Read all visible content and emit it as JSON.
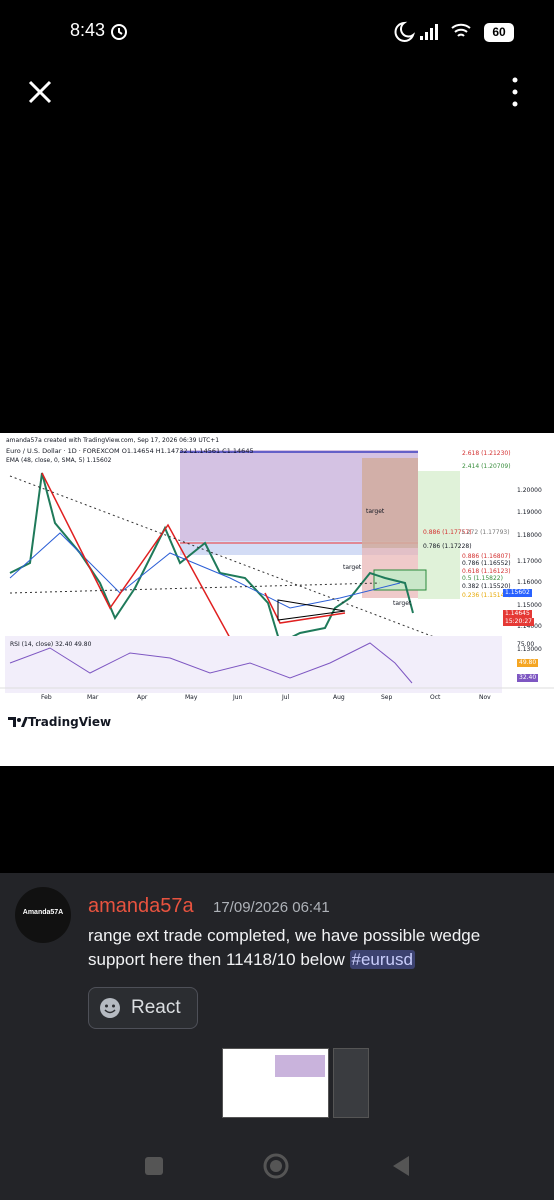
{
  "status_bar": {
    "time": "8:43",
    "battery": "60"
  },
  "chart_image": {
    "header_lines": [
      "amanda57a created with TradingView.com, Sep 17, 2026 06:39 UTC+1",
      "Euro / U.S. Dollar · 1D · FOREXCOM  O1.14654 H1.14732 L1.14561 C1.14645",
      "EMA (48, close, 0, SMA, 5) 1.15602"
    ],
    "price_labels": [
      "1.20000",
      "1.19000",
      "1.18000",
      "1.17000",
      "1.16000",
      "1.15000",
      "1.14000",
      "1.13000"
    ],
    "month_labels": [
      "Feb",
      "Mar",
      "Apr",
      "May",
      "Jun",
      "Jul",
      "Aug",
      "Sep",
      "Oct",
      "Nov"
    ],
    "fib_labels": [
      "2.618 (1.21230)",
      "2.414 (1.20709)",
      "0.886 (1.17757)",
      "1.272 (1.17793)",
      "0.786 (1.17228)",
      "0.886 (1.16807)",
      "0.786 (1.16552)",
      "0.618 (1.16123)",
      "0.5 (1.15822)",
      "0.382 (1.15520)",
      "0.236 (1.15148)"
    ],
    "target_labels": [
      "target",
      "target",
      "target"
    ],
    "ema_price": "1.15602",
    "last_price": "1.14645",
    "countdown": "15:20:27",
    "rsi_label": "RSI (14, close) 32.40 49.80",
    "rsi_levels": [
      "75.00",
      "49.80",
      "32.40"
    ],
    "logo": "TradingView"
  },
  "message": {
    "avatar_label": "Amanda57A",
    "author": "amanda57a",
    "timestamp": "17/09/2026 06:41",
    "text_lines": [
      "range ext trade completed, we have possible wedge",
      "support here then 11418/10 below"
    ],
    "hashtag": "#eurusd"
  },
  "react_button": "React"
}
